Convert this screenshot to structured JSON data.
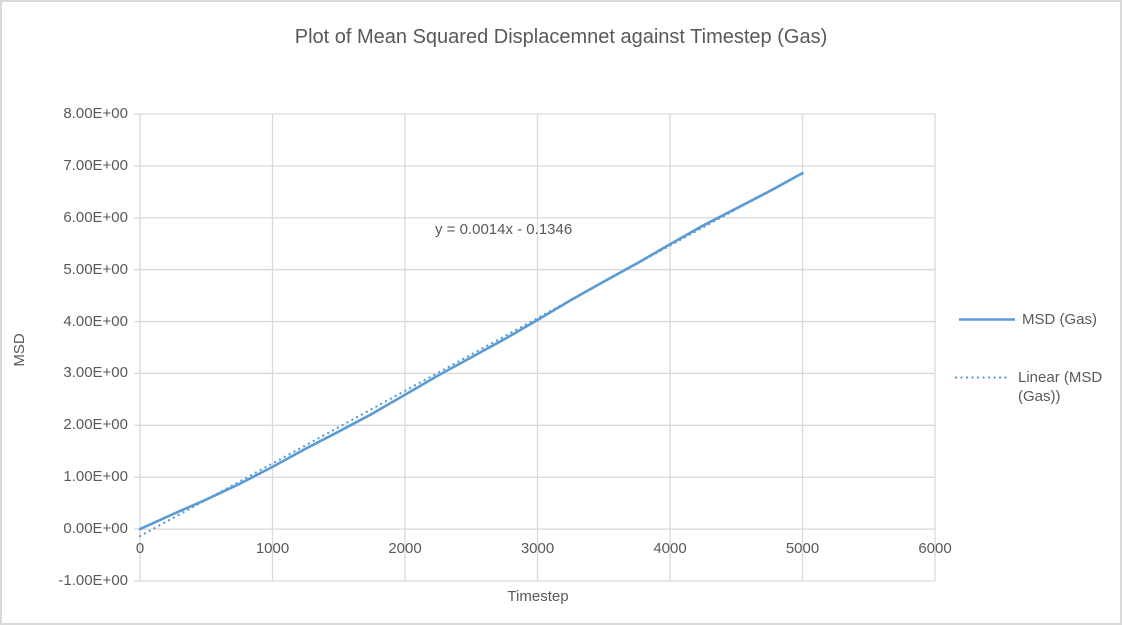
{
  "chart_data": {
    "type": "line",
    "title": "Plot of Mean Squared Displacemnet against Timestep (Gas)",
    "xlabel": "Timestep",
    "ylabel": "MSD",
    "xlim": [
      0,
      6000
    ],
    "ylim": [
      -1,
      8
    ],
    "grid": true,
    "legend_position": "right",
    "x_ticks": [
      {
        "v": 0,
        "label": "0"
      },
      {
        "v": 1000,
        "label": "1000"
      },
      {
        "v": 2000,
        "label": "2000"
      },
      {
        "v": 3000,
        "label": "3000"
      },
      {
        "v": 4000,
        "label": "4000"
      },
      {
        "v": 5000,
        "label": "5000"
      },
      {
        "v": 6000,
        "label": "6000"
      }
    ],
    "y_ticks": [
      {
        "v": 8,
        "label": "8.00E+00"
      },
      {
        "v": 7,
        "label": "7.00E+00"
      },
      {
        "v": 6,
        "label": "6.00E+00"
      },
      {
        "v": 5,
        "label": "5.00E+00"
      },
      {
        "v": 4,
        "label": "4.00E+00"
      },
      {
        "v": 3,
        "label": "3.00E+00"
      },
      {
        "v": 2,
        "label": "2.00E+00"
      },
      {
        "v": 1,
        "label": "1.00E+00"
      },
      {
        "v": 0,
        "label": "0.00E+00"
      },
      {
        "v": -1,
        "label": "-1.00E+00"
      }
    ],
    "x": [
      0,
      250,
      500,
      750,
      1000,
      1250,
      1500,
      1750,
      2000,
      2250,
      2500,
      2750,
      3000,
      3250,
      3500,
      3750,
      4000,
      4250,
      4500,
      4750,
      5000
    ],
    "series": [
      {
        "name": "MSD (Gas)",
        "style": "solid",
        "values": [
          0.0,
          0.29,
          0.57,
          0.87,
          1.2,
          1.55,
          1.88,
          2.22,
          2.59,
          2.96,
          3.31,
          3.66,
          4.03,
          4.41,
          4.77,
          5.12,
          5.49,
          5.85,
          6.18,
          6.51,
          6.86
        ]
      },
      {
        "name": "Linear (MSD (Gas))",
        "style": "dotted",
        "type": "trendline",
        "slope": 0.0014,
        "intercept": -0.1346,
        "x_start": 0,
        "x_end": 5000
      }
    ],
    "annotations": [
      {
        "text": "y = 0.0014x - 0.1346"
      }
    ],
    "legend": [
      {
        "label": "MSD (Gas)",
        "style": "solid"
      },
      {
        "label": "Linear (MSD (Gas))",
        "style": "dotted"
      }
    ],
    "colors": {
      "series": "#5B9BD5",
      "gridline": "#D9D9D9",
      "text": "#595959",
      "border": "#D9D9D9"
    }
  }
}
